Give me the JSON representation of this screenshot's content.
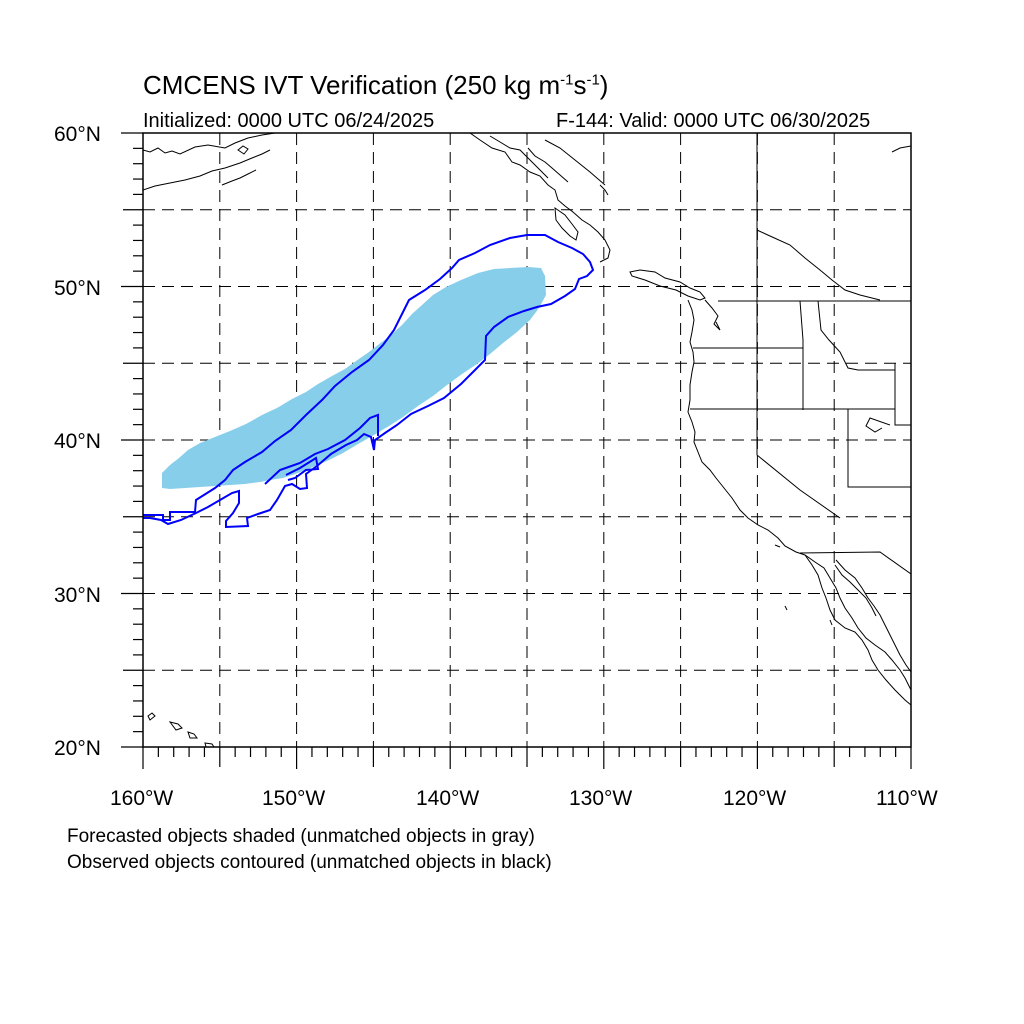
{
  "title": {
    "prefix": "CMCENS IVT Verification (250 kg m",
    "exp1": "-1",
    "mid": "s",
    "exp2": "-1",
    "suffix": ")"
  },
  "subtitle_left": "Initialized: 0000 UTC 06/24/2025",
  "subtitle_right": "F-144: Valid: 0000 UTC 06/30/2025",
  "lat_labels": [
    "60°N",
    "50°N",
    "40°N",
    "30°N",
    "20°N"
  ],
  "lon_labels": [
    "160°W",
    "150°W",
    "140°W",
    "130°W",
    "120°W",
    "110°W"
  ],
  "footnotes": [
    "Forecasted objects shaded (unmatched objects in gray)",
    "Observed objects contoured (unmatched objects in black)"
  ],
  "colors": {
    "forecast_fill": "#87ceeb",
    "observed_contour": "#0000ff",
    "coastline": "#000000",
    "grid": "#000000"
  },
  "map_data": {
    "projection": "cylindrical equidistant",
    "lon_range": [
      -160,
      -110
    ],
    "lat_range": [
      20,
      60
    ],
    "grid_spacing_deg": 5,
    "grid_style": "dashed"
  }
}
